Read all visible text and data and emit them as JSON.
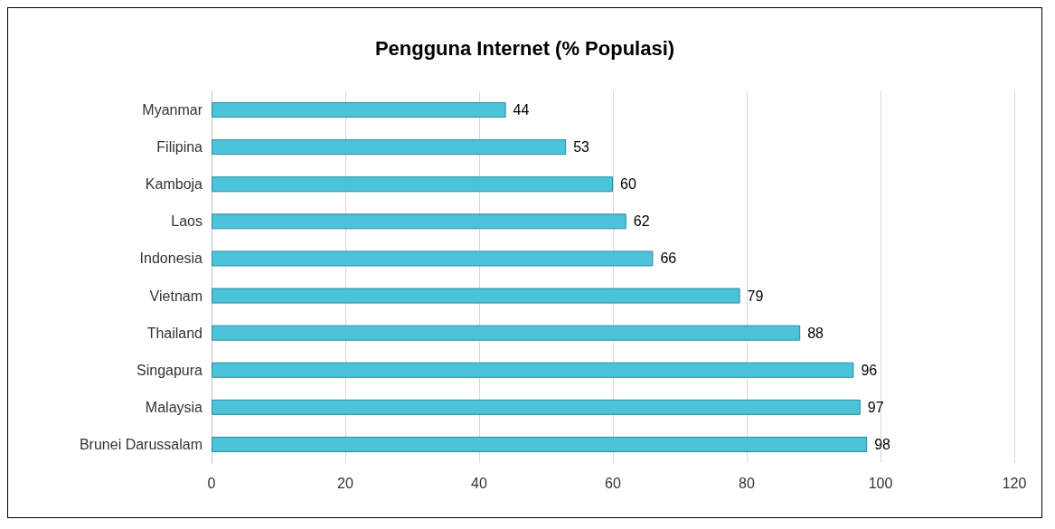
{
  "chart_data": {
    "type": "bar",
    "orientation": "horizontal",
    "title": "Pengguna Internet (% Populasi)",
    "categories": [
      "Myanmar",
      "Filipina",
      "Kamboja",
      "Laos",
      "Indonesia",
      "Vietnam",
      "Thailand",
      "Singapura",
      "Malaysia",
      "Brunei Darussalam"
    ],
    "values": [
      44,
      53,
      60,
      62,
      66,
      79,
      88,
      96,
      97,
      98
    ],
    "color": "#4bc3d8",
    "xlim": [
      0,
      120
    ],
    "xticks": [
      0,
      20,
      40,
      60,
      80,
      100,
      120
    ],
    "grid": "x",
    "data_labels": true
  }
}
